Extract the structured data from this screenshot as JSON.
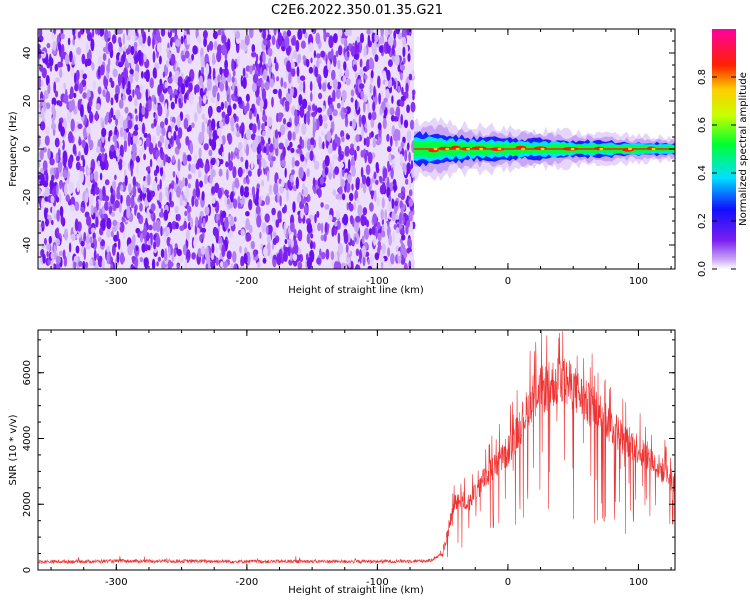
{
  "title": "C2E6.2022.350.01.35.G21",
  "chart_data": [
    {
      "type": "heatmap",
      "xlabel": "Height of straight line (km)",
      "ylabel": "Frequency (Hz)",
      "xlim": [
        -360,
        128
      ],
      "ylim": [
        -50,
        50
      ],
      "xticks": [
        -300,
        -200,
        -100,
        0,
        100
      ],
      "yticks": [
        -40,
        -20,
        0,
        20,
        40
      ],
      "noise_region": {
        "x_from": -360,
        "x_to": -72,
        "description": "broadband low-amplitude speckle"
      },
      "signal_band": {
        "x_from": -72,
        "x_to": 128,
        "freq_center": 0,
        "freq_halfwidth_hz": [
          5,
          1.5
        ],
        "peaks_x": [
          -57,
          -48,
          -40,
          -32,
          -22,
          -8,
          10,
          25,
          48,
          70,
          92,
          110
        ]
      },
      "colorbar": {
        "label": "Normalized spectral amplitude",
        "range": [
          0.0,
          1.0
        ],
        "ticks": [
          0.0,
          0.2,
          0.4,
          0.6,
          0.8
        ],
        "tick_labels": [
          "0.0",
          "0.2",
          "0.4",
          "0.6",
          "0.8"
        ],
        "colormap": "rainbow (white→violet→blue→cyan→green→yellow→red→magenta)"
      }
    },
    {
      "type": "line",
      "xlabel": "Height of straight line (km)",
      "ylabel": "SNR (10 * v/v)",
      "xlim": [
        -360,
        128
      ],
      "ylim": [
        0,
        7300
      ],
      "xticks": [
        -300,
        -200,
        -100,
        0,
        100
      ],
      "yticks": [
        0,
        2000,
        4000,
        6000
      ],
      "series": [
        {
          "color": "#ee3333",
          "x": [
            -360,
            -300,
            -250,
            -200,
            -150,
            -100,
            -60,
            -50,
            -45,
            -40,
            -35,
            -30,
            -20,
            -10,
            0,
            10,
            20,
            30,
            40,
            50,
            60,
            70,
            80,
            90,
            100,
            110,
            120,
            128
          ],
          "y": [
            250,
            270,
            270,
            260,
            260,
            260,
            280,
            500,
            1500,
            2300,
            2300,
            2200,
            2900,
            3400,
            3900,
            4800,
            5800,
            6000,
            6300,
            6000,
            5500,
            5200,
            4700,
            4300,
            4000,
            3600,
            3200,
            2900
          ]
        }
      ]
    }
  ]
}
